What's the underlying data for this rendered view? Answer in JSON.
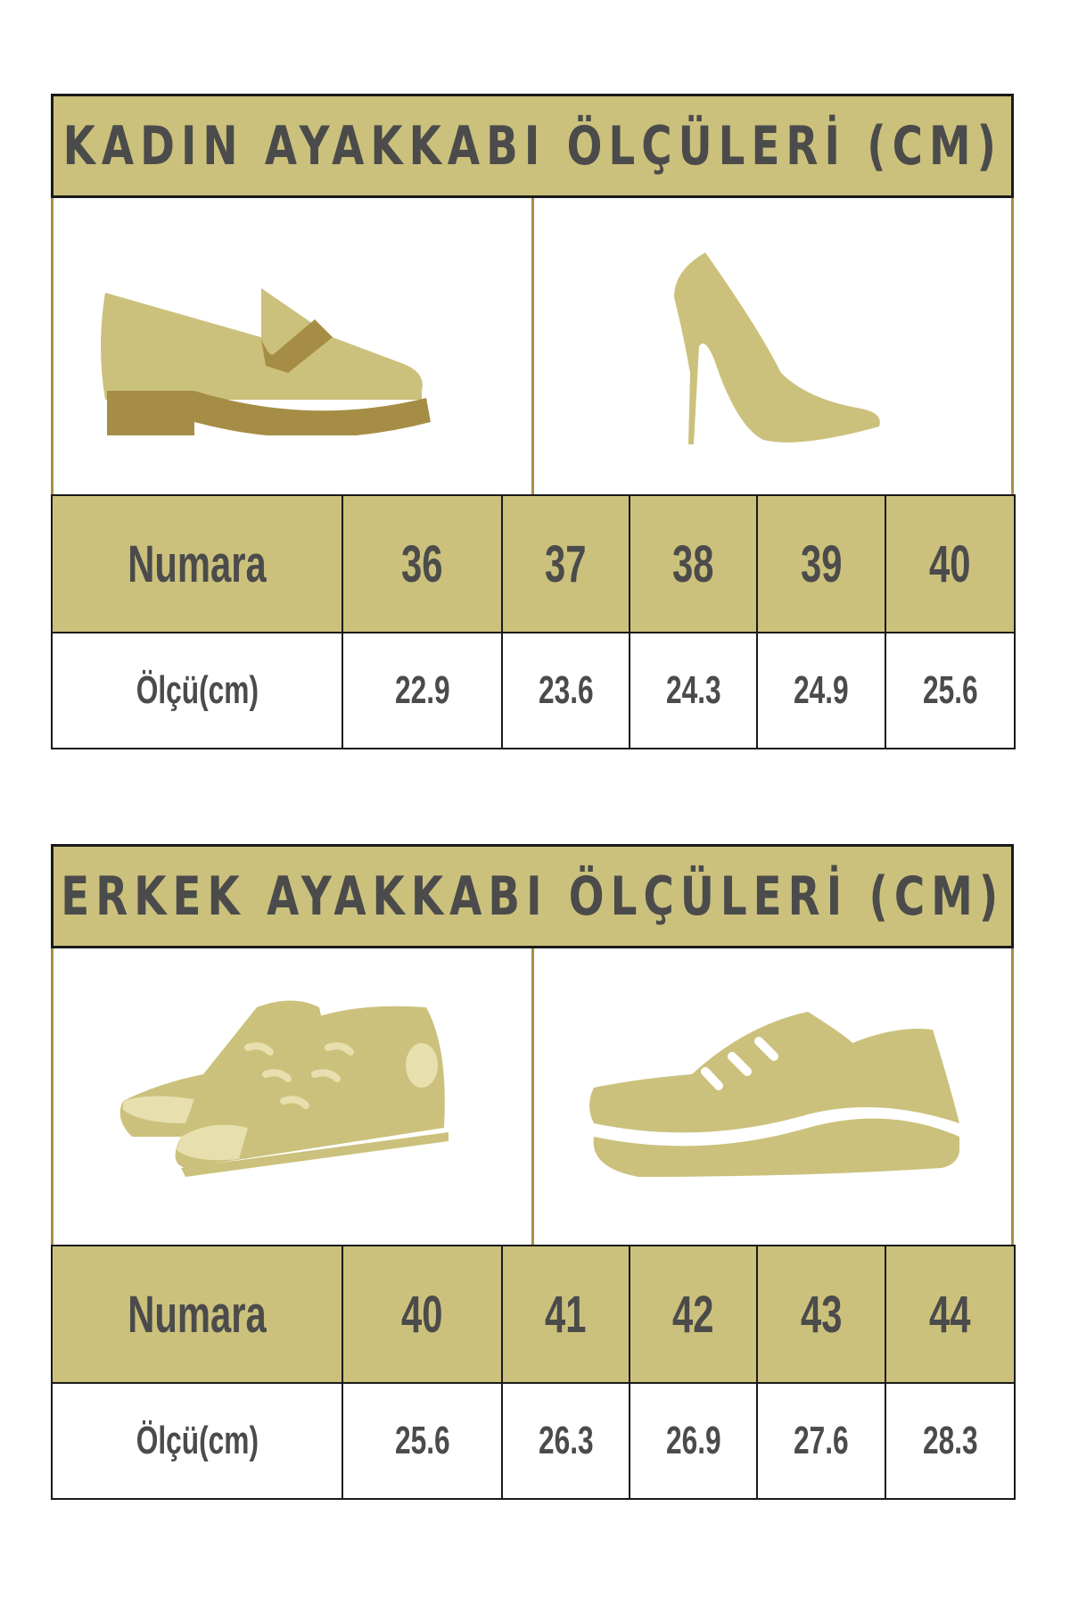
{
  "colors": {
    "accent": "#cbc17c",
    "dark_accent": "#a68d45",
    "text": "#4b4b4b",
    "border": "#1a1a1a"
  },
  "women": {
    "title": "KADIN AYAKKABI ÖLÇÜLERİ (CM)",
    "icons": [
      "loafer-shoe-icon",
      "high-heel-icon"
    ],
    "row_label_size": "Numara",
    "row_label_measure": "Ölçü(cm)",
    "sizes": [
      "36",
      "37",
      "38",
      "39",
      "40"
    ],
    "measures": [
      "22.9",
      "23.6",
      "24.3",
      "24.9",
      "25.6"
    ]
  },
  "men": {
    "title": "ERKEK AYAKKABI ÖLÇÜLERİ (CM)",
    "icons": [
      "high-top-sneakers-icon",
      "sneaker-icon"
    ],
    "row_label_size": "Numara",
    "row_label_measure": "Ölçü(cm)",
    "sizes": [
      "40",
      "41",
      "42",
      "43",
      "44"
    ],
    "measures": [
      "25.6",
      "26.3",
      "26.9",
      "27.6",
      "28.3"
    ]
  }
}
